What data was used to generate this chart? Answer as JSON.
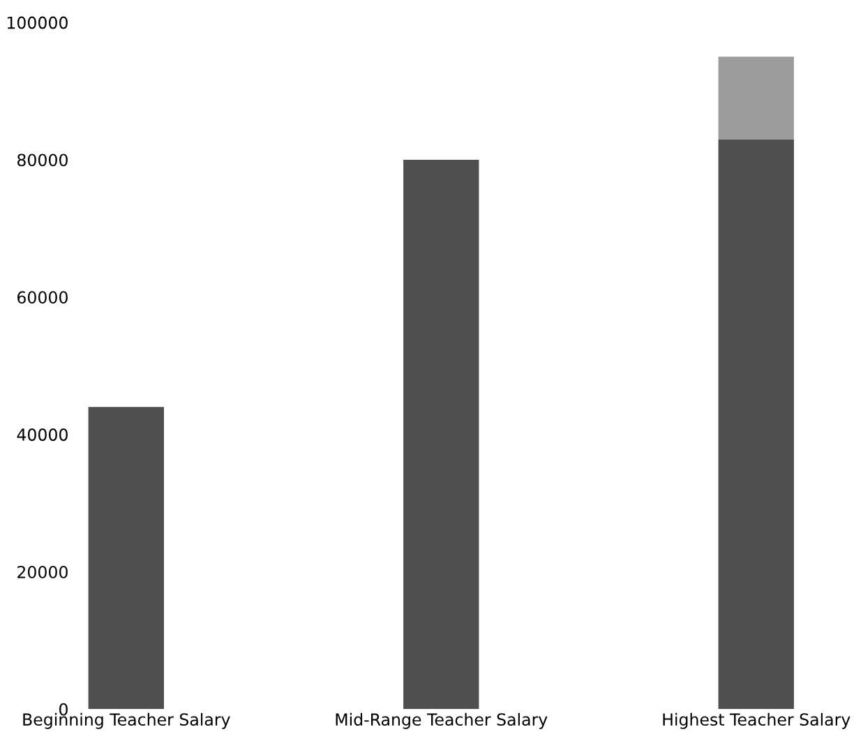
{
  "chart_data": {
    "type": "bar",
    "stacked": true,
    "categories": [
      "Beginning Teacher Salary",
      "Mid-Range Teacher Salary",
      "Highest Teacher Salary"
    ],
    "series": [
      {
        "color": "#4f4f4f",
        "values": [
          44000,
          80000,
          83000
        ]
      },
      {
        "color": "#9c9c9c",
        "values": [
          null,
          null,
          12000
        ]
      }
    ],
    "ylim": [
      0,
      100000
    ],
    "yticks": [
      0,
      20000,
      40000,
      60000,
      80000,
      100000
    ],
    "grid": false,
    "legend": false
  }
}
